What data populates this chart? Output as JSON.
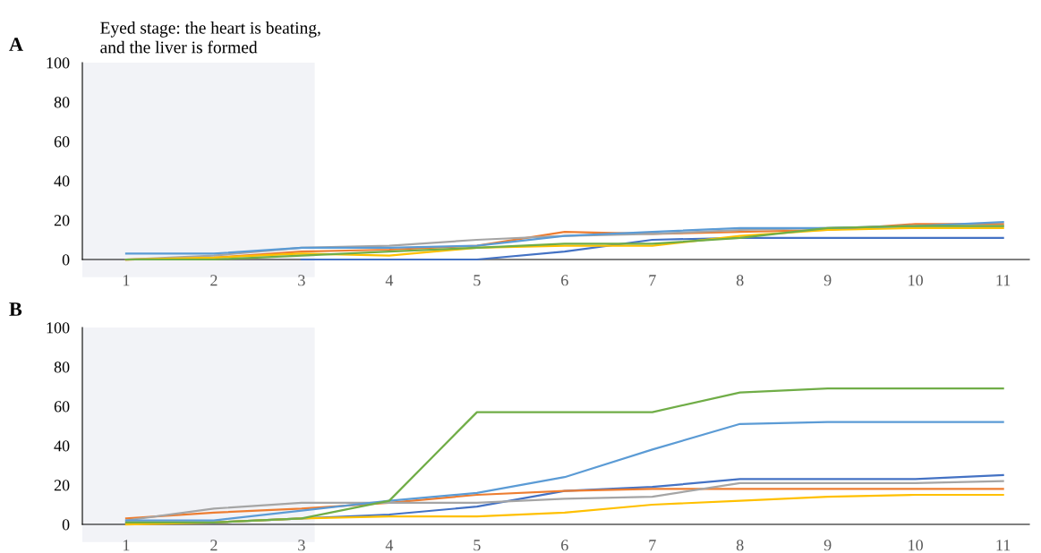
{
  "chart_data": [
    {
      "type": "line",
      "title": "A",
      "x": [
        1,
        2,
        3,
        4,
        5,
        6,
        7,
        8,
        9,
        10,
        11
      ],
      "xlim": [
        0.5,
        11.3
      ],
      "xticks": [
        1,
        2,
        3,
        4,
        5,
        6,
        7,
        8,
        9,
        10,
        11
      ],
      "ylim": [
        0,
        100
      ],
      "yticks": [
        0,
        20,
        40,
        60,
        80,
        100
      ],
      "grid": false,
      "legend": false,
      "marker": "none",
      "bands": [
        {
          "axis": "x",
          "from": 0.5,
          "to": 3.15,
          "label": "Eyed stage: the heart is beating,\nand the liver is formed",
          "color": "#f2f3f7"
        }
      ],
      "series": [
        {
          "color": "#4472c4",
          "values": [
            null,
            null,
            0,
            0,
            0,
            4,
            10,
            11,
            11,
            11,
            11
          ]
        },
        {
          "color": "#ed7d31",
          "values": [
            0,
            1,
            4,
            5,
            7,
            14,
            13,
            14,
            15,
            18,
            18
          ]
        },
        {
          "color": "#a5a5a5",
          "values": [
            0,
            2,
            6,
            7,
            10,
            12,
            13,
            15,
            16,
            17,
            17
          ]
        },
        {
          "color": "#ffc000",
          "values": [
            0,
            1,
            3,
            2,
            6,
            7,
            7,
            12,
            15,
            16,
            16
          ]
        },
        {
          "color": "#5b9bd5",
          "values": [
            3,
            3,
            6,
            6,
            7,
            12,
            14,
            16,
            16,
            17,
            19
          ]
        },
        {
          "color": "#70ad47",
          "values": [
            0,
            0,
            2,
            4,
            6,
            8,
            8,
            11,
            16,
            17,
            17
          ]
        }
      ]
    },
    {
      "type": "line",
      "title": "B",
      "x": [
        1,
        2,
        3,
        4,
        5,
        6,
        7,
        8,
        9,
        10,
        11
      ],
      "xlim": [
        0.5,
        11.3
      ],
      "xticks": [
        1,
        2,
        3,
        4,
        5,
        6,
        7,
        8,
        9,
        10,
        11
      ],
      "ylim": [
        0,
        100
      ],
      "yticks": [
        0,
        20,
        40,
        60,
        80,
        100
      ],
      "grid": false,
      "legend": false,
      "marker": "none",
      "bands": [
        {
          "axis": "x",
          "from": 0.5,
          "to": 3.15,
          "color": "#f2f3f7"
        }
      ],
      "series": [
        {
          "color": "#4472c4",
          "values": [
            1,
            1,
            3,
            5,
            9,
            17,
            19,
            23,
            23,
            23,
            25
          ]
        },
        {
          "color": "#ed7d31",
          "values": [
            3,
            6,
            8,
            11,
            15,
            17,
            18,
            18,
            18,
            18,
            18
          ]
        },
        {
          "color": "#a5a5a5",
          "values": [
            2,
            8,
            11,
            11,
            11,
            13,
            14,
            21,
            21,
            21,
            22
          ]
        },
        {
          "color": "#ffc000",
          "values": [
            0,
            1,
            3,
            4,
            4,
            6,
            10,
            12,
            14,
            15,
            15
          ]
        },
        {
          "color": "#5b9bd5",
          "values": [
            2,
            2,
            7,
            12,
            16,
            24,
            38,
            51,
            52,
            52,
            52
          ]
        },
        {
          "color": "#70ad47",
          "values": [
            1,
            1,
            3,
            12,
            57,
            57,
            57,
            67,
            69,
            69,
            69
          ]
        }
      ]
    }
  ]
}
